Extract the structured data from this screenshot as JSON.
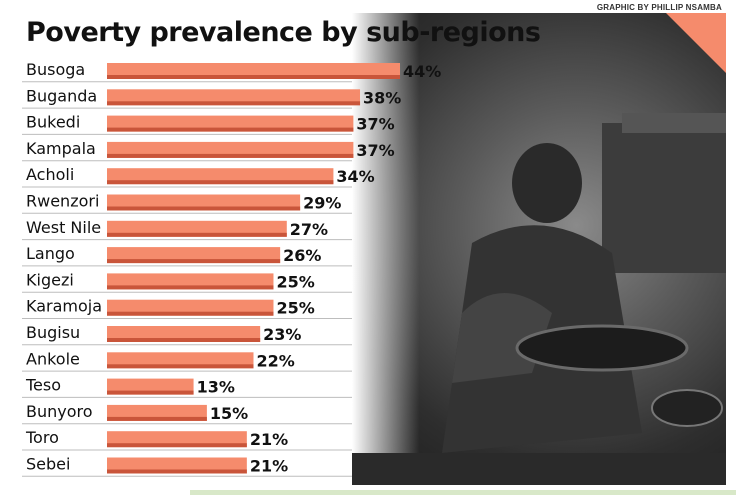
{
  "credit": "GRAPHIC BY PHILLIP NSAMBA",
  "colors": {
    "bar": "#f58b6c",
    "bar_shadow": "#c9553a",
    "accent": "#f58b6c",
    "text": "#111111"
  },
  "chart_data": {
    "type": "bar",
    "orientation": "horizontal",
    "title": "Poverty prevalence by sub-regions",
    "unit": "%",
    "xlim": [
      0,
      44
    ],
    "grid": false,
    "categories": [
      "Busoga",
      "Buganda",
      "Bukedi",
      "Kampala",
      "Acholi",
      "Rwenzori",
      "West Nile",
      "Lango",
      "Kigezi",
      "Karamoja",
      "Bugisu",
      "Ankole",
      "Teso",
      "Bunyoro",
      "Toro",
      "Sebei"
    ],
    "values": [
      44,
      38,
      37,
      37,
      34,
      29,
      27,
      26,
      25,
      25,
      23,
      22,
      13,
      15,
      21,
      21
    ],
    "value_labels": [
      "44%",
      "38%",
      "37%",
      "37%",
      "34%",
      "29%",
      "27%",
      "26%",
      "25%",
      "25%",
      "23%",
      "22%",
      "13%",
      "15%",
      "21%",
      "21%"
    ]
  }
}
